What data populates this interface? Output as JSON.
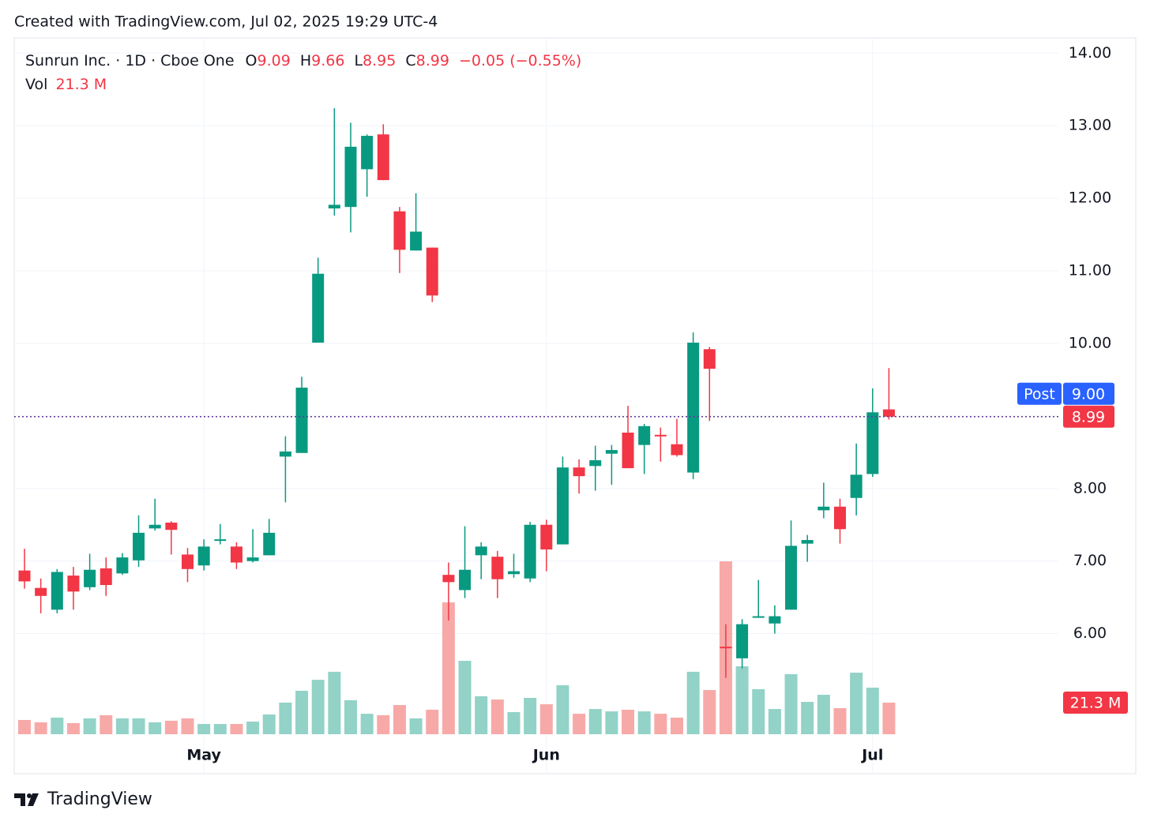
{
  "page": {
    "title": "Created with TradingView.com, Jul 02, 2025 19:29 UTC-4",
    "brand": "TradingView"
  },
  "chart_data": {
    "type": "candlestick",
    "symbol_line": "Sunrun Inc. · 1D · Cboe One",
    "ohlc_letters": [
      "O",
      "H",
      "L",
      "C"
    ],
    "change": "−0.05 (−0.55%)",
    "volume_title": "Vol",
    "volume_value": "21.3 M",
    "post_label": "Post",
    "post_price": "9.00",
    "categories": [
      null,
      null,
      null,
      null,
      null,
      null,
      null,
      null,
      null,
      null,
      null,
      "May",
      null,
      null,
      null,
      null,
      null,
      null,
      null,
      null,
      null,
      null,
      null,
      null,
      null,
      null,
      null,
      null,
      null,
      null,
      null,
      null,
      "Jun",
      null,
      null,
      null,
      null,
      null,
      null,
      null,
      null,
      null,
      null,
      null,
      null,
      null,
      null,
      null,
      null,
      null,
      null,
      null,
      "Jul",
      null
    ],
    "open": [
      6.87,
      6.63,
      6.33,
      6.8,
      6.64,
      6.9,
      6.83,
      7.01,
      7.45,
      7.53,
      7.09,
      6.94,
      7.29,
      7.2,
      7.0,
      7.08,
      8.44,
      8.49,
      10.01,
      11.86,
      11.88,
      12.4,
      12.88,
      11.82,
      11.28,
      11.32,
      6.81,
      6.6,
      7.08,
      7.06,
      6.82,
      6.76,
      7.5,
      7.23,
      8.29,
      8.31,
      8.48,
      8.77,
      8.6,
      8.74,
      8.61,
      8.22,
      9.92,
      5.82,
      5.66,
      6.23,
      6.14,
      6.33,
      7.24,
      7.7,
      7.75,
      7.87,
      8.2,
      9.09
    ],
    "high": [
      7.17,
      6.76,
      6.89,
      6.92,
      7.1,
      7.05,
      7.11,
      7.63,
      7.86,
      7.55,
      7.18,
      7.3,
      7.51,
      7.26,
      7.44,
      7.58,
      8.72,
      9.54,
      11.18,
      13.24,
      13.04,
      12.88,
      13.02,
      11.88,
      12.07,
      11.32,
      6.98,
      7.48,
      7.26,
      7.14,
      7.1,
      7.54,
      7.57,
      8.44,
      8.4,
      8.59,
      8.6,
      9.14,
      8.89,
      8.84,
      8.96,
      10.15,
      9.95,
      6.13,
      6.2,
      6.74,
      6.39,
      7.56,
      7.36,
      8.08,
      7.86,
      8.62,
      9.38,
      9.66
    ],
    "low": [
      6.62,
      6.28,
      6.28,
      6.33,
      6.6,
      6.52,
      6.81,
      6.92,
      7.42,
      7.09,
      6.71,
      6.87,
      7.23,
      6.89,
      6.98,
      7.08,
      7.81,
      8.49,
      10.01,
      11.76,
      11.53,
      12.02,
      12.25,
      10.97,
      11.28,
      10.57,
      6.18,
      6.49,
      6.75,
      6.49,
      6.77,
      6.71,
      6.86,
      7.23,
      7.93,
      7.97,
      8.05,
      8.28,
      8.2,
      8.37,
      8.44,
      8.13,
      8.93,
      5.39,
      5.52,
      6.23,
      6.0,
      6.33,
      6.99,
      7.59,
      7.24,
      7.63,
      8.16,
      8.95
    ],
    "close": [
      6.72,
      6.52,
      6.85,
      6.58,
      6.88,
      6.67,
      7.05,
      7.39,
      7.5,
      7.43,
      6.89,
      7.2,
      7.3,
      6.98,
      7.05,
      7.39,
      8.51,
      9.39,
      10.96,
      11.91,
      12.71,
      12.86,
      12.25,
      11.29,
      11.54,
      10.66,
      6.71,
      6.88,
      7.2,
      6.75,
      6.86,
      7.5,
      7.16,
      8.29,
      8.17,
      8.39,
      8.53,
      8.28,
      8.86,
      8.73,
      8.46,
      10.01,
      9.65,
      5.81,
      6.13,
      6.24,
      6.24,
      7.21,
      7.29,
      7.75,
      7.44,
      8.19,
      9.05,
      8.99
    ],
    "volume": [
      9.6,
      8.0,
      11.2,
      7.5,
      10.7,
      12.8,
      10.7,
      10.7,
      8.0,
      9.1,
      10.7,
      6.9,
      6.9,
      6.9,
      8.5,
      13.3,
      21.3,
      29.3,
      36.7,
      42.1,
      22.9,
      13.8,
      12.8,
      19.7,
      10.7,
      16.5,
      88.9,
      49.5,
      25.6,
      23.4,
      14.9,
      24.5,
      20.2,
      33.0,
      13.8,
      17.0,
      15.4,
      16.5,
      15.4,
      13.8,
      11.2,
      42.1,
      29.8,
      116.6,
      45.8,
      30.4,
      17.0,
      40.5,
      21.8,
      26.6,
      17.6,
      41.5,
      31.4,
      21.3
    ],
    "up_color": "#089981",
    "down_color": "#f23645",
    "up_volume_color": "#92d2c7",
    "down_volume_color": "#f7a9a8",
    "post_color": "#2962ff",
    "ylim": [
      4.07,
      14.21
    ],
    "yticks": [
      {
        "value": 6,
        "label": "6.00"
      },
      {
        "value": 7,
        "label": "7.00"
      },
      {
        "value": 8,
        "label": "8.00"
      },
      {
        "value": 9,
        "label": "9.00"
      },
      {
        "value": 10,
        "label": "10.00"
      },
      {
        "value": 11,
        "label": "11.00"
      },
      {
        "value": 12,
        "label": "12.00"
      },
      {
        "value": 13,
        "label": "13.00"
      },
      {
        "value": 14,
        "label": "14.00"
      }
    ],
    "grid": true
  }
}
